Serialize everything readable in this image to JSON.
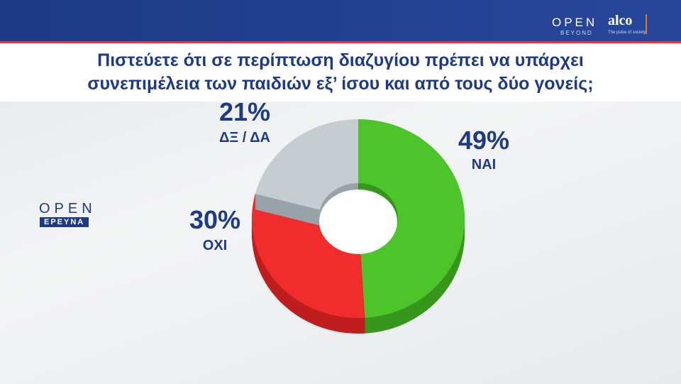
{
  "chart_data": {
    "type": "donut",
    "title": "Πιστεύετε ότι σε περίπτωση διαζυγίου πρέπει να υπάρχει συνεπιμέλεια των παιδιών εξ’ ίσου και από τους δύο γονείς;",
    "categories": [
      "ΝΑΙ",
      "ΟΧΙ",
      "ΔΞ / ΔΑ"
    ],
    "values": [
      49,
      30,
      21
    ],
    "value_labels": [
      "49%",
      "30%",
      "21%"
    ],
    "colors": [
      "#4cc42a",
      "#f02c2c",
      "#c6cdd1"
    ],
    "side_colors": [
      "#37961c",
      "#bf1e1e",
      "#98a2a8"
    ]
  },
  "logos": {
    "channel": "OPEN",
    "channel_sub": "BEYOND",
    "pollster": "alco",
    "pollster_sub": "The pulse of society",
    "side": "OPEN",
    "side_sub": "ΕΡΕΥΝΑ"
  }
}
